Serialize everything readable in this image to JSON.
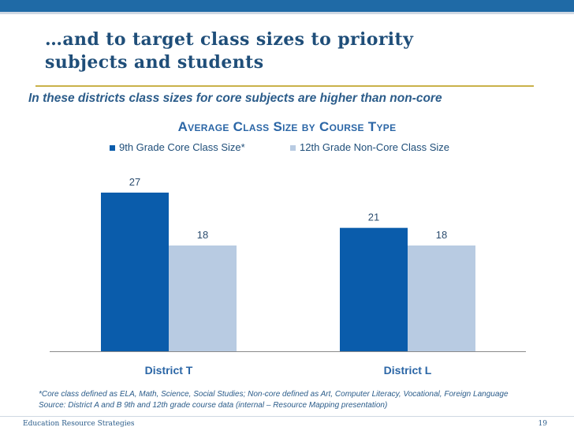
{
  "slide": {
    "title_line1": "…and to target class sizes to priority",
    "title_line2": "subjects and students",
    "subtitle": "In these districts class sizes for core subjects are higher than non-core",
    "footnote_line1": "*Core class defined as ELA, Math, Science, Social Studies; Non-core defined as Art, Computer Literacy, Vocational, Foreign Language",
    "footnote_line2": "Source: District A and B 9th and 12th grade course data (internal – Resource Mapping presentation)",
    "footer_org": "Education Resource Strategies",
    "page_number": "19"
  },
  "colors": {
    "series_core": "#0a5cab",
    "series_noncore": "#b8cbe2",
    "title": "#1f4e79",
    "accent_rule": "#c9b14a",
    "top_bar": "#1f6aa6"
  },
  "chart_data": {
    "type": "bar",
    "title": "Average Class Size by Course Type",
    "categories": [
      "District T",
      "District L"
    ],
    "series": [
      {
        "name": "9th Grade Core Class Size*",
        "values": [
          27,
          21
        ]
      },
      {
        "name": "12th Grade Non-Core Class Size",
        "values": [
          18,
          18
        ]
      }
    ],
    "xlabel": "",
    "ylabel": "",
    "ylim": [
      0,
      30
    ],
    "legend_position": "top",
    "grid": false
  }
}
